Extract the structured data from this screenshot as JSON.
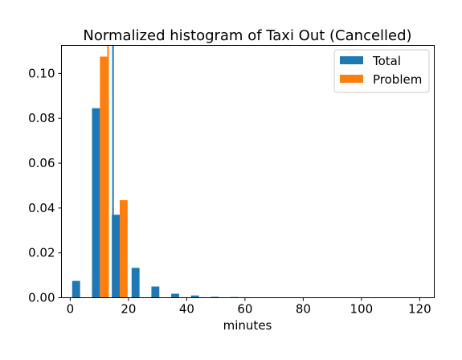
{
  "chart_data": {
    "type": "bar",
    "title": "Normalized histogram of Taxi Out (Cancelled)",
    "xlabel": "minutes",
    "ylabel": "",
    "xlim": [
      -3,
      125
    ],
    "ylim": [
      0,
      0.1125
    ],
    "x_ticks": [
      0,
      20,
      40,
      60,
      80,
      100,
      120
    ],
    "x_tick_labels": [
      "0",
      "20",
      "40",
      "60",
      "80",
      "100",
      "120"
    ],
    "y_ticks": [
      0,
      0.02,
      0.04,
      0.06,
      0.08,
      0.1
    ],
    "y_tick_labels": [
      "0.00",
      "0.02",
      "0.04",
      "0.06",
      "0.08",
      "0.10"
    ],
    "bin_edges": [
      0,
      6.8,
      13.6,
      20.4,
      27.2,
      34.0,
      40.8,
      47.6,
      54.4,
      61.2,
      68.0,
      74.8,
      81.6,
      88.4,
      95.2,
      102.0,
      108.8,
      115.6,
      122.4
    ],
    "series": [
      {
        "name": "Total",
        "color": "#1f77b4",
        "values": [
          0.0075,
          0.0845,
          0.037,
          0.0133,
          0.005,
          0.0018,
          0.001,
          0.0004,
          0.0003,
          0,
          0,
          0,
          0,
          0,
          0,
          0,
          0,
          0
        ],
        "mean_line": 14.7
      },
      {
        "name": "Problem",
        "color": "#ff7f0e",
        "values": [
          0,
          0.1075,
          0.0435,
          0,
          0,
          0,
          0,
          0,
          0,
          0,
          0,
          0,
          0,
          0,
          0,
          0,
          0,
          0
        ],
        "mean_line": 13.0
      }
    ],
    "legend": {
      "placement": "top-right"
    },
    "grid": false
  }
}
